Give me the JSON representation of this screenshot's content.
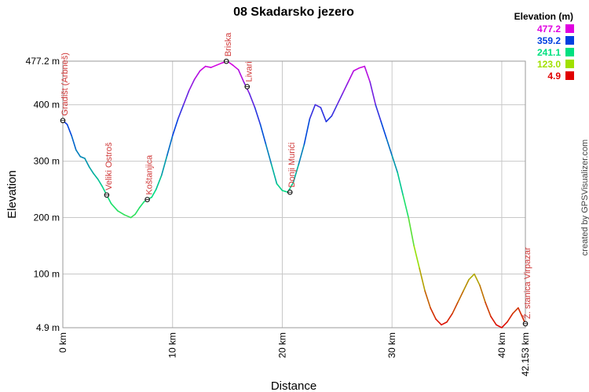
{
  "chart_data": {
    "type": "line",
    "title": "08 Skadarsko jezero",
    "xlabel": "Distance",
    "ylabel": "Elevation",
    "xlim": [
      0,
      42.153
    ],
    "ylim": [
      4.9,
      477.2
    ],
    "grid": true,
    "x_ticks": [
      {
        "value": 0,
        "label": "0 km"
      },
      {
        "value": 10,
        "label": "10 km"
      },
      {
        "value": 20,
        "label": "20 km"
      },
      {
        "value": 30,
        "label": "30 km"
      },
      {
        "value": 40,
        "label": "40 km"
      },
      {
        "value": 42.153,
        "label": "42.153 km"
      }
    ],
    "y_ticks": [
      {
        "value": 4.9,
        "label": "4.9 m"
      },
      {
        "value": 100,
        "label": "100 m"
      },
      {
        "value": 200,
        "label": "200 m"
      },
      {
        "value": 300,
        "label": "300 m"
      },
      {
        "value": 400,
        "label": "400 m"
      },
      {
        "value": 477.2,
        "label": "477.2 m"
      }
    ],
    "legend": {
      "title": "Elevation (m)",
      "placement": "top-right",
      "entries": [
        {
          "label": "477.2",
          "color": "#e000e0"
        },
        {
          "label": "359.2",
          "color": "#0040e0"
        },
        {
          "label": "241.1",
          "color": "#00e080"
        },
        {
          "label": "123.0",
          "color": "#a0e000"
        },
        {
          "label": "4.9",
          "color": "#e00000"
        }
      ]
    },
    "series": [
      {
        "x": [
          0,
          0.4,
          0.8,
          1.2,
          1.6,
          2.0,
          2.4,
          2.8,
          3.2,
          3.6,
          4.0,
          4.4,
          5.0,
          5.6,
          6.2,
          6.6,
          7.0,
          7.4,
          7.7,
          8.1,
          8.5,
          9.0,
          9.5,
          10.0,
          10.5,
          11.0,
          11.5,
          12.0,
          12.5,
          13.0,
          13.5,
          14.0,
          14.5,
          15.0,
          15.5,
          16.0,
          16.5,
          17.0,
          17.5,
          18.0,
          18.5,
          19.0,
          19.5,
          20.0,
          20.5,
          21.0,
          21.5,
          22.0,
          22.5,
          23.0,
          23.5,
          24.0,
          24.5,
          25.0,
          25.5,
          26.0,
          26.5,
          27.0,
          27.5,
          28.0,
          28.5,
          29.0,
          29.5,
          30.0,
          30.5,
          31.0,
          31.5,
          32.0,
          32.5,
          33.0,
          33.5,
          34.0,
          34.5,
          35.0,
          35.5,
          36.0,
          36.5,
          37.0,
          37.5,
          38.0,
          38.5,
          39.0,
          39.5,
          40.0,
          40.5,
          41.0,
          41.5,
          42.153
        ],
        "y": [
          372,
          365,
          345,
          320,
          308,
          305,
          290,
          278,
          268,
          255,
          240,
          225,
          212,
          205,
          200,
          206,
          218,
          228,
          232,
          236,
          250,
          275,
          310,
          345,
          375,
          400,
          425,
          445,
          460,
          468,
          466,
          470,
          474,
          477,
          470,
          462,
          440,
          420,
          395,
          365,
          330,
          295,
          260,
          248,
          245,
          262,
          295,
          330,
          375,
          400,
          395,
          370,
          380,
          400,
          420,
          440,
          460,
          465,
          468,
          440,
          400,
          370,
          340,
          310,
          280,
          240,
          200,
          150,
          110,
          70,
          40,
          20,
          10,
          15,
          30,
          50,
          70,
          90,
          100,
          80,
          50,
          25,
          10,
          5,
          15,
          30,
          40,
          12
        ]
      }
    ],
    "waypoints": [
      {
        "name": "Gradišt (Arbneš)",
        "x": 0,
        "y": 372
      },
      {
        "name": "Veliki Ostroš",
        "x": 4.0,
        "y": 240
      },
      {
        "name": "Koštanjica",
        "x": 7.7,
        "y": 232
      },
      {
        "name": "Briska",
        "x": 14.9,
        "y": 477
      },
      {
        "name": "Livari",
        "x": 16.8,
        "y": 432
      },
      {
        "name": "Donji Murići",
        "x": 20.7,
        "y": 245
      },
      {
        "name": "Ž. stanica Virpazar",
        "x": 42.153,
        "y": 12
      }
    ]
  },
  "credit": "created by GPSVisualizer.com"
}
